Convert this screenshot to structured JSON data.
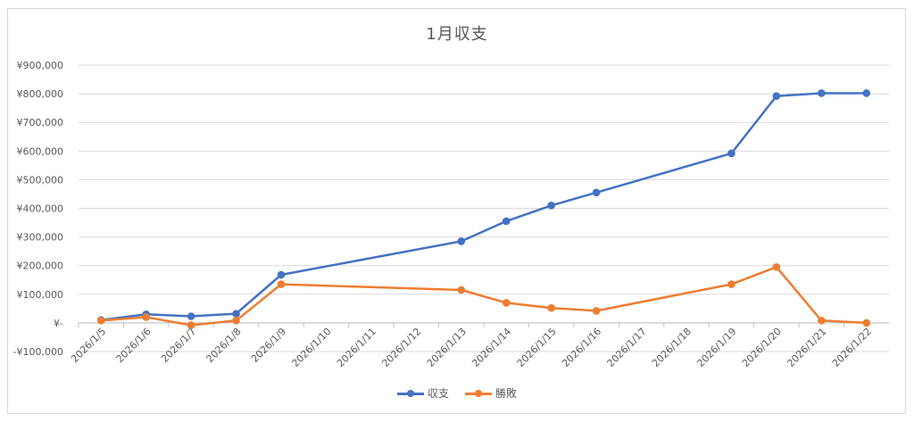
{
  "chart_data": {
    "type": "line",
    "title": "1月収支",
    "xlabel": "",
    "ylabel": "",
    "categories": [
      "2026/1/5",
      "2026/1/6",
      "2026/1/7",
      "2026/1/8",
      "2026/1/9",
      "2026/1/10",
      "2026/1/11",
      "2026/1/12",
      "2026/1/13",
      "2026/1/14",
      "2026/1/15",
      "2026/1/16",
      "2026/1/17",
      "2026/1/18",
      "2026/1/19",
      "2026/1/20",
      "2026/1/21",
      "2026/1/22"
    ],
    "y_ticks": [
      "¥900,000",
      "¥800,000",
      "¥700,000",
      "¥600,000",
      "¥500,000",
      "¥400,000",
      "¥300,000",
      "¥200,000",
      "¥100,000",
      "¥-",
      "-¥100,000"
    ],
    "y_tick_values": [
      900000,
      800000,
      700000,
      600000,
      500000,
      400000,
      300000,
      200000,
      100000,
      0,
      -100000
    ],
    "ylim": [
      -100000,
      900000
    ],
    "grid": true,
    "legend_position": "bottom",
    "series": [
      {
        "name": "収支",
        "color": "#4472c4",
        "points": [
          {
            "x": "2026/1/5",
            "y": 10000
          },
          {
            "x": "2026/1/6",
            "y": 30000
          },
          {
            "x": "2026/1/7",
            "y": 23000
          },
          {
            "x": "2026/1/8",
            "y": 32000
          },
          {
            "x": "2026/1/9",
            "y": 168000
          },
          {
            "x": "2026/1/13",
            "y": 285000
          },
          {
            "x": "2026/1/14",
            "y": 355000
          },
          {
            "x": "2026/1/15",
            "y": 410000
          },
          {
            "x": "2026/1/16",
            "y": 455000
          },
          {
            "x": "2026/1/19",
            "y": 592000
          },
          {
            "x": "2026/1/20",
            "y": 792000
          },
          {
            "x": "2026/1/21",
            "y": 802000
          },
          {
            "x": "2026/1/22",
            "y": 802000
          }
        ]
      },
      {
        "name": "勝敗",
        "color": "#ed7d31",
        "points": [
          {
            "x": "2026/1/5",
            "y": 8000
          },
          {
            "x": "2026/1/6",
            "y": 20000
          },
          {
            "x": "2026/1/7",
            "y": -8000
          },
          {
            "x": "2026/1/8",
            "y": 8000
          },
          {
            "x": "2026/1/9",
            "y": 135000
          },
          {
            "x": "2026/1/13",
            "y": 115000
          },
          {
            "x": "2026/1/14",
            "y": 70000
          },
          {
            "x": "2026/1/15",
            "y": 52000
          },
          {
            "x": "2026/1/16",
            "y": 42000
          },
          {
            "x": "2026/1/19",
            "y": 135000
          },
          {
            "x": "2026/1/20",
            "y": 195000
          },
          {
            "x": "2026/1/21",
            "y": 8000
          },
          {
            "x": "2026/1/22",
            "y": 0
          }
        ]
      }
    ]
  }
}
